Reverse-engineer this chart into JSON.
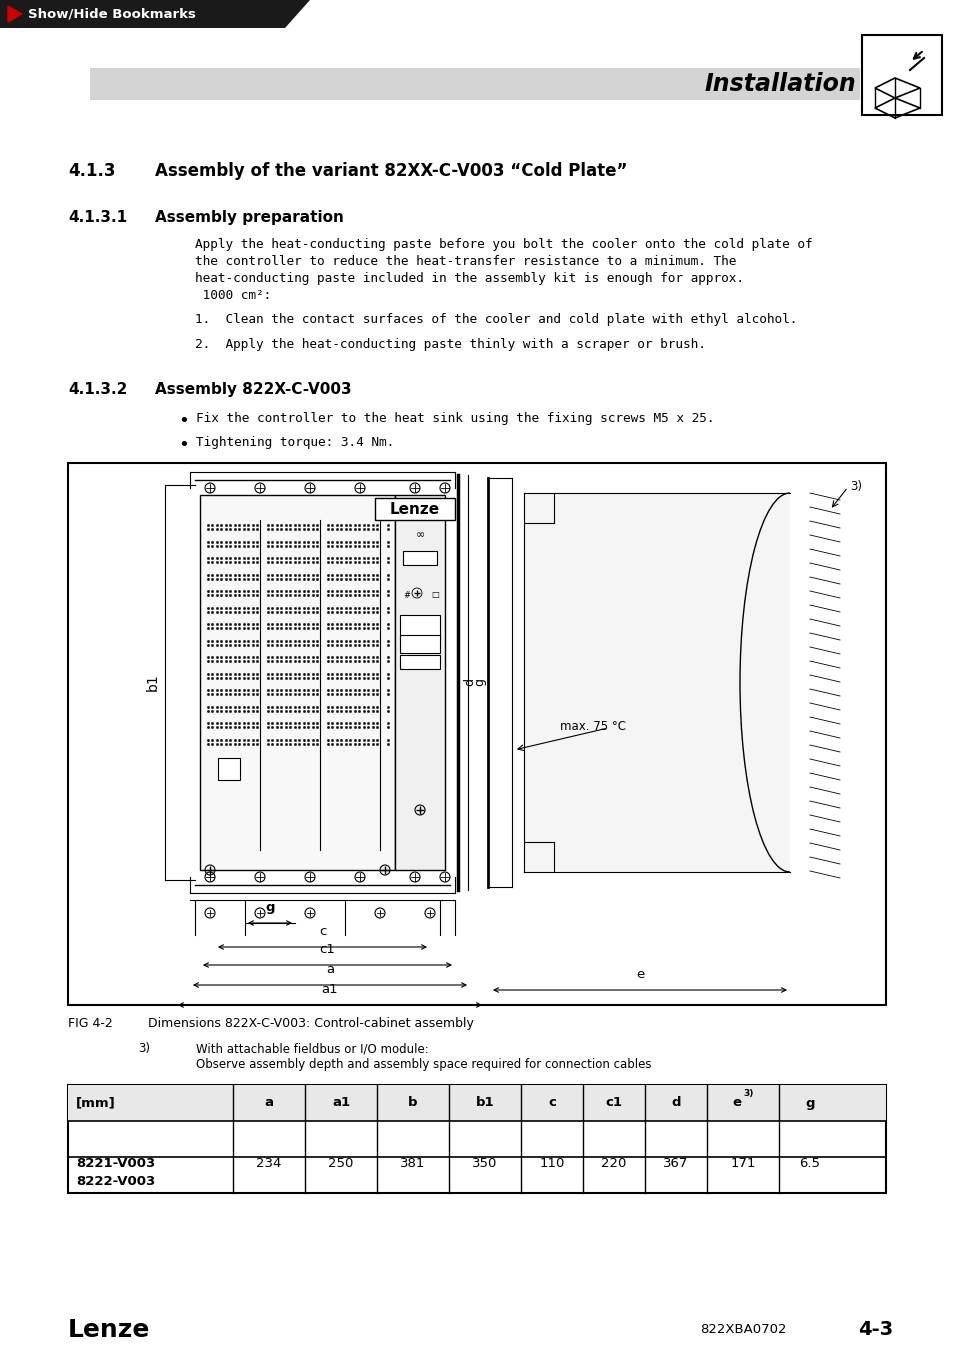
{
  "page_bg": "#ffffff",
  "header_bar_color": "#1a1a1a",
  "header_text": "Show/Hide Bookmarks",
  "header_text_color": "#ffffff",
  "header_arrow_color": "#cc0000",
  "title_bar_color": "#d4d4d4",
  "title_text": "Installation",
  "section_413_num": "4.1.3",
  "section_413_text": "Assembly of the variant 82XX-C-V003 “Cold Plate”",
  "section_4131_num": "4.1.3.1",
  "section_4131_text": "Assembly preparation",
  "body_lines": [
    "Apply the heat-conducting paste before you bolt the cooler onto the cold plate of",
    "the controller to reduce the heat-transfer resistance to a minimum. The",
    "heat-conducting paste included in the assembly kit is enough for approx.",
    " 1000 cm²:"
  ],
  "list_item1": "1.  Clean the contact surfaces of the cooler and cold plate with ethyl alcohol.",
  "list_item2": "2.  Apply the heat-conducting paste thinly with a scraper or brush.",
  "section_4132_num": "4.1.3.2",
  "section_4132_text": "Assembly 822X-C-V003",
  "bullet1": "Fix the controller to the heat sink using the fixing screws M5 x 25.",
  "bullet2": "Tightening torque: 3.4 Nm.",
  "fig_caption_left": "FIG 4-2",
  "fig_caption_right": "Dimensions 822X-C-V003: Control-cabinet assembly",
  "footnote_num": "3)",
  "footnote_line1": "With attachable fieldbus or I/O module:",
  "footnote_line2": "Observe assembly depth and assembly space required for connection cables",
  "table_col0": "[mm]",
  "table_col1": "a",
  "table_col2": "a1",
  "table_col3": "b",
  "table_col4": "b1",
  "table_col5": "c",
  "table_col6": "c1",
  "table_col7": "d",
  "table_col8": "e",
  "table_col8_sup": "3)",
  "table_col9": "g",
  "row_label_1": "8221-V003",
  "row_label_2": "8222-V003",
  "val_a": "234",
  "val_a1": "250",
  "val_b": "381",
  "val_b1": "350",
  "val_c": "110",
  "val_c1": "220",
  "val_d": "367",
  "val_e": "171",
  "val_g": "6.5",
  "footer_lenze": "Lenze",
  "footer_code": "822XBA0702",
  "footer_page": "4-3",
  "max_temp": "max. 75 °C",
  "note3": "3)",
  "label_b1": "b1",
  "label_d": "d",
  "label_g_dim": "g",
  "label_c": "c",
  "label_c1": "c1",
  "label_a": "a",
  "label_a1": "a1",
  "label_e": "e",
  "label_g_right": "g",
  "label_lenze": "Lenze"
}
